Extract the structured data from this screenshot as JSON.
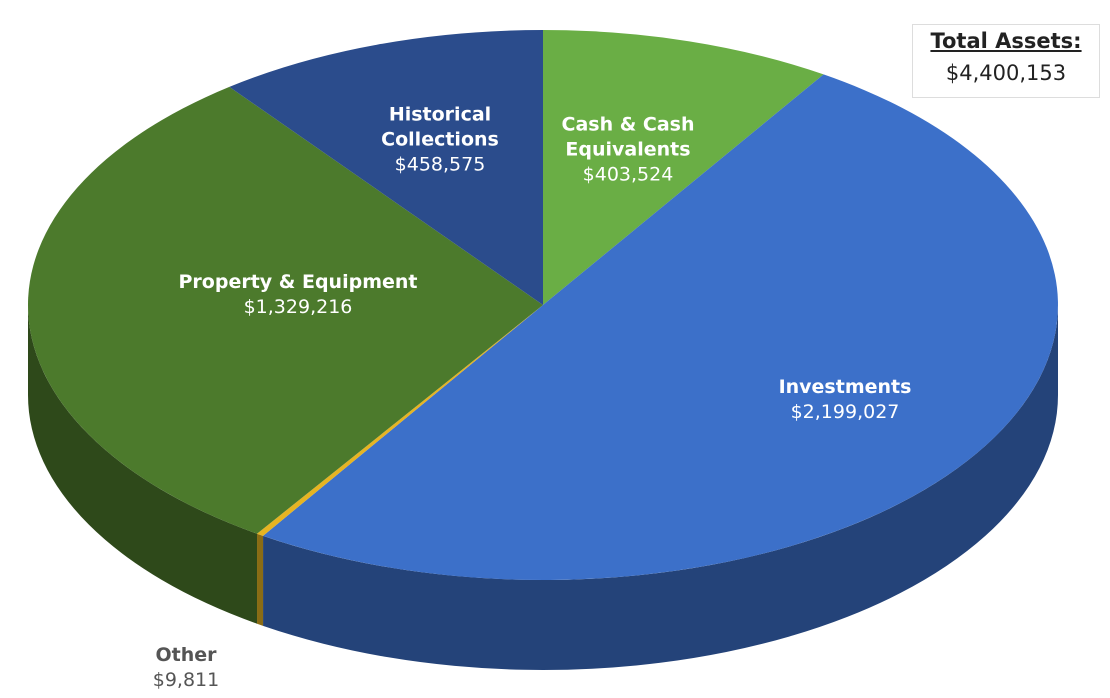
{
  "chart_data": {
    "type": "pie",
    "categories": [
      "Cash & Cash Equivalents",
      "Investments",
      "Other",
      "Property & Equipment",
      "Historical Collections"
    ],
    "values": [
      403524,
      2199027,
      9811,
      1329216,
      458575
    ],
    "value_labels": [
      "$403,524",
      "$2,199,027",
      "$9,811",
      "$1,329,216",
      "$458,575"
    ],
    "colors": [
      "#6aae45",
      "#3c70c9",
      "#e6b422",
      "#4c7a2c",
      "#2b4c8c"
    ],
    "total": {
      "label": "Total Assets:",
      "value_label": "$4,400,153"
    }
  }
}
